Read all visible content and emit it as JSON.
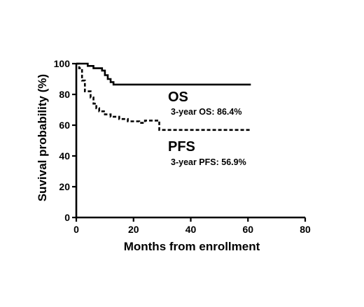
{
  "chart_data": {
    "type": "line",
    "xlabel": "Months from enrollment",
    "ylabel": "Suvival probability (%)",
    "xlim": [
      0,
      80
    ],
    "ylim": [
      0,
      100
    ],
    "xticks": [
      0,
      20,
      40,
      60,
      80
    ],
    "yticks": [
      0,
      20,
      40,
      60,
      80,
      100
    ],
    "grid": false,
    "series": [
      {
        "name": "OS",
        "annotation": "3-year OS: 86.4%",
        "line_style": "solid",
        "color": "#000000",
        "steps": [
          [
            0,
            100
          ],
          [
            4,
            98.5
          ],
          [
            6,
            97
          ],
          [
            9,
            95.5
          ],
          [
            10,
            92.5
          ],
          [
            11,
            90
          ],
          [
            12,
            88
          ],
          [
            13,
            86.4
          ],
          [
            61,
            86.4
          ]
        ]
      },
      {
        "name": "PFS",
        "annotation": "3-year PFS: 56.9%",
        "line_style": "dashed",
        "color": "#000000",
        "steps": [
          [
            0,
            100
          ],
          [
            1,
            97
          ],
          [
            2,
            89
          ],
          [
            3,
            82
          ],
          [
            5,
            78
          ],
          [
            6,
            74
          ],
          [
            7,
            71
          ],
          [
            8,
            69
          ],
          [
            10,
            67
          ],
          [
            12,
            65.5
          ],
          [
            15,
            64
          ],
          [
            18,
            62.5
          ],
          [
            22,
            61.5
          ],
          [
            24,
            63
          ],
          [
            28,
            63
          ],
          [
            29,
            56.9
          ],
          [
            61,
            56.9
          ]
        ]
      }
    ]
  }
}
